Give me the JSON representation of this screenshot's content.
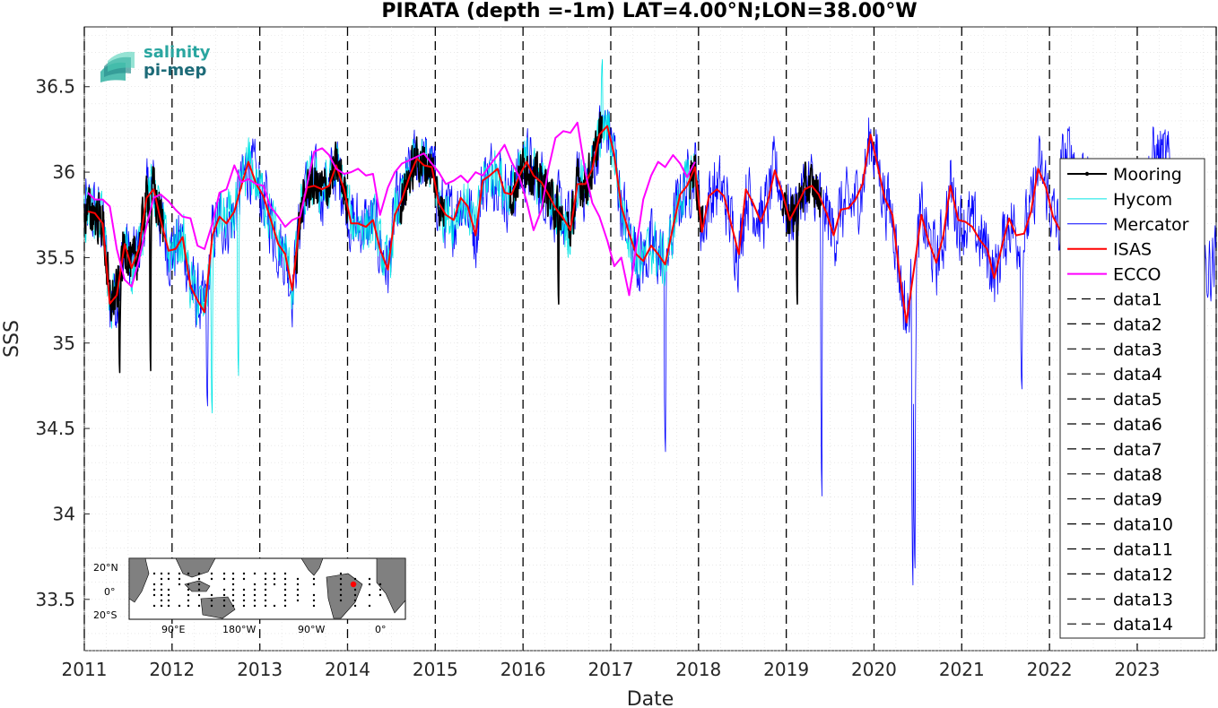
{
  "chart_data": {
    "type": "line",
    "title": "PIRATA (depth =-1m) LAT=4.00°N;LON=38.00°W",
    "xlabel": "Date",
    "ylabel": "SSS",
    "xlim": [
      2011.0,
      2023.9
    ],
    "ylim": [
      33.2,
      36.85
    ],
    "xticks": [
      "2011",
      "2012",
      "2013",
      "2014",
      "2015",
      "2016",
      "2017",
      "2018",
      "2019",
      "2020",
      "2021",
      "2022",
      "2023"
    ],
    "yticks": [
      "33.5",
      "34",
      "34.5",
      "35",
      "35.5",
      "36",
      "36.5"
    ],
    "grid": true,
    "legend_position": "right",
    "legend": [
      "Mooring",
      "Hycom",
      "Mercator",
      "ISAS",
      "ECCO",
      "data1",
      "data2",
      "data3",
      "data4",
      "data5",
      "data6",
      "data7",
      "data8",
      "data9",
      "data10",
      "data11",
      "data12",
      "data13",
      "data14"
    ],
    "vlines": [
      2011.0,
      2012.0,
      2013.0,
      2014.0,
      2015.0,
      2016.0,
      2017.0,
      2018.0,
      2019.0,
      2020.0,
      2021.0,
      2022.0,
      2023.0,
      2023.9
    ],
    "series": [
      {
        "name": "ISAS",
        "color": "#ff0000",
        "x": [
          2011.04,
          2011.12,
          2011.21,
          2011.29,
          2011.37,
          2011.46,
          2011.54,
          2011.62,
          2011.71,
          2011.79,
          2011.87,
          2011.96,
          2012.04,
          2012.12,
          2012.21,
          2012.29,
          2012.37,
          2012.46,
          2012.54,
          2012.62,
          2012.71,
          2012.79,
          2012.87,
          2012.96,
          2013.04,
          2013.12,
          2013.21,
          2013.29,
          2013.37,
          2013.46,
          2013.54,
          2013.62,
          2013.71,
          2013.79,
          2013.87,
          2013.96,
          2014.04,
          2014.12,
          2014.21,
          2014.29,
          2014.37,
          2014.46,
          2014.54,
          2014.62,
          2014.71,
          2014.79,
          2014.87,
          2014.96,
          2015.04,
          2015.12,
          2015.21,
          2015.29,
          2015.37,
          2015.46,
          2015.54,
          2015.62,
          2015.71,
          2015.79,
          2015.87,
          2015.96,
          2016.04,
          2016.12,
          2016.21,
          2016.29,
          2016.37,
          2016.46,
          2016.54,
          2016.62,
          2016.71,
          2016.79,
          2016.87,
          2016.96,
          2017.04,
          2017.12,
          2017.21,
          2017.29,
          2017.37,
          2017.46,
          2017.54,
          2017.62,
          2017.71,
          2017.79,
          2017.87,
          2017.96,
          2018.04,
          2018.12,
          2018.21,
          2018.29,
          2018.37,
          2018.46,
          2018.54,
          2018.62,
          2018.71,
          2018.79,
          2018.87,
          2018.96,
          2019.04,
          2019.12,
          2019.21,
          2019.29,
          2019.37,
          2019.46,
          2019.54,
          2019.62,
          2019.71,
          2019.79,
          2019.87,
          2019.96,
          2020.04,
          2020.12,
          2020.21,
          2020.29,
          2020.37,
          2020.46,
          2020.54,
          2020.62,
          2020.71,
          2020.79,
          2020.87,
          2020.96,
          2021.04,
          2021.12,
          2021.21,
          2021.29,
          2021.37,
          2021.46,
          2021.54,
          2021.62,
          2021.71,
          2021.79,
          2021.87,
          2021.96,
          2022.04,
          2022.12
        ],
        "values": [
          35.77,
          35.76,
          35.7,
          35.23,
          35.28,
          35.58,
          35.44,
          35.55,
          35.85,
          35.9,
          35.72,
          35.54,
          35.55,
          35.62,
          35.33,
          35.25,
          35.18,
          35.63,
          35.74,
          35.7,
          35.77,
          35.92,
          36.06,
          35.93,
          35.86,
          35.73,
          35.58,
          35.52,
          35.31,
          35.75,
          35.91,
          35.92,
          35.9,
          35.92,
          36.04,
          35.9,
          35.7,
          35.7,
          35.68,
          35.72,
          35.55,
          35.43,
          35.75,
          35.84,
          35.98,
          36.08,
          36.04,
          36.03,
          35.82,
          35.75,
          35.72,
          35.85,
          35.8,
          35.63,
          35.95,
          35.98,
          36.02,
          35.88,
          35.87,
          35.98,
          36.06,
          35.98,
          35.94,
          35.87,
          35.79,
          35.73,
          35.66,
          35.93,
          35.93,
          36.02,
          36.22,
          36.27,
          36.1,
          35.8,
          35.64,
          35.52,
          35.48,
          35.57,
          35.52,
          35.46,
          35.68,
          35.87,
          35.92,
          36.03,
          35.65,
          35.86,
          35.9,
          35.86,
          35.7,
          35.52,
          35.9,
          35.82,
          35.71,
          35.83,
          36.01,
          35.87,
          35.72,
          35.8,
          35.9,
          35.92,
          35.87,
          35.76,
          35.63,
          35.78,
          35.79,
          35.84,
          35.93,
          36.22,
          36.04,
          35.85,
          35.75,
          35.41,
          35.12,
          35.45,
          35.75,
          35.6,
          35.47,
          35.63,
          35.92,
          35.72,
          35.71,
          35.68,
          35.6,
          35.55,
          35.38,
          35.57,
          35.73,
          35.63,
          35.64,
          35.77,
          36.02,
          35.91,
          35.74,
          35.66
        ]
      },
      {
        "name": "ECCO",
        "color": "#ff00ff",
        "x": [
          2011.04,
          2011.12,
          2011.21,
          2011.29,
          2011.37,
          2011.46,
          2011.54,
          2011.62,
          2011.71,
          2011.79,
          2011.87,
          2011.96,
          2012.04,
          2012.12,
          2012.21,
          2012.29,
          2012.37,
          2012.46,
          2012.54,
          2012.62,
          2012.71,
          2012.79,
          2012.87,
          2012.96,
          2013.04,
          2013.12,
          2013.21,
          2013.29,
          2013.37,
          2013.46,
          2013.54,
          2013.62,
          2013.71,
          2013.79,
          2013.87,
          2013.96,
          2014.04,
          2014.12,
          2014.21,
          2014.29,
          2014.37,
          2014.46,
          2014.54,
          2014.62,
          2014.71,
          2014.79,
          2014.87,
          2014.96,
          2015.04,
          2015.12,
          2015.21,
          2015.29,
          2015.37,
          2015.46,
          2015.54,
          2015.62,
          2015.71,
          2015.79,
          2015.87,
          2015.96,
          2016.04,
          2016.12,
          2016.21,
          2016.29,
          2016.37,
          2016.46,
          2016.54,
          2016.62,
          2016.71,
          2016.79,
          2016.87,
          2016.96,
          2017.04,
          2017.12,
          2017.21,
          2017.29,
          2017.37,
          2017.46,
          2017.54,
          2017.62,
          2017.71,
          2017.79,
          2017.87,
          2017.96
        ],
        "values": [
          35.88,
          35.84,
          35.84,
          35.8,
          35.55,
          35.37,
          35.33,
          35.48,
          35.69,
          35.85,
          35.87,
          35.83,
          35.78,
          35.74,
          35.73,
          35.57,
          35.55,
          35.7,
          35.88,
          35.9,
          36.04,
          35.94,
          35.96,
          35.93,
          35.92,
          35.8,
          35.74,
          35.68,
          35.72,
          35.74,
          35.93,
          36.12,
          36.14,
          36.1,
          36.02,
          35.99,
          36.0,
          36.02,
          35.98,
          35.99,
          35.75,
          35.91,
          36.0,
          36.05,
          36.07,
          36.09,
          36.11,
          36.05,
          36.0,
          35.93,
          35.95,
          35.98,
          35.94,
          36.0,
          35.98,
          36.04,
          36.1,
          36.16,
          36.06,
          35.97,
          35.83,
          35.66,
          35.78,
          36.02,
          36.2,
          36.24,
          36.23,
          36.29,
          36.0,
          35.82,
          35.74,
          35.6,
          35.45,
          35.5,
          35.28,
          35.56,
          35.84,
          35.98,
          36.06,
          36.03,
          36.1,
          36.05,
          35.97,
          36.06
        ]
      }
    ]
  },
  "logo": {
    "line1": "salinity",
    "line2": "pi-mep"
  },
  "inset_map": {
    "ylabels": [
      "20°N",
      "0°",
      "20°S"
    ],
    "xlabels": [
      "90°E",
      "180°W",
      "90°W",
      "0°"
    ]
  }
}
